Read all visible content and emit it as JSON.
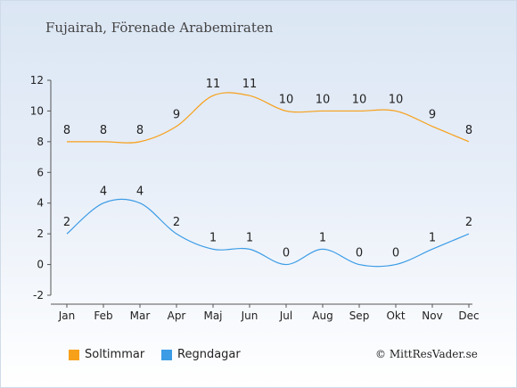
{
  "title": "Fujairah, Förenade Arabemiraten",
  "credit": "© MittResVader.se",
  "colors": {
    "sun": "#f7a01a",
    "rain": "#3c9ce6",
    "axis": "#555555"
  },
  "chart_data": {
    "type": "line",
    "categories": [
      "Jan",
      "Feb",
      "Mar",
      "Apr",
      "Maj",
      "Jun",
      "Jul",
      "Aug",
      "Sep",
      "Okt",
      "Nov",
      "Dec"
    ],
    "ylim": [
      -2,
      12
    ],
    "yticks": [
      -2,
      0,
      2,
      4,
      6,
      8,
      10,
      12
    ],
    "series": [
      {
        "name": "Soltimmar",
        "color": "#f7a01a",
        "values": [
          8,
          8,
          8,
          9,
          11,
          11,
          10,
          10,
          10,
          10,
          9,
          8
        ]
      },
      {
        "name": "Regndagar",
        "color": "#3c9ce6",
        "values": [
          2,
          4,
          4,
          2,
          1,
          1,
          0,
          1,
          0,
          0,
          1,
          2
        ]
      }
    ],
    "legend": "bottom-left"
  }
}
